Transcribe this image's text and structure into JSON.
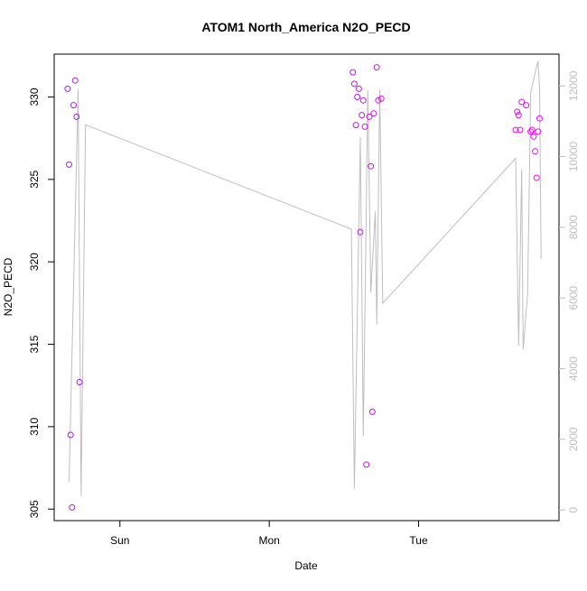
{
  "chart_data": {
    "type": "scatter",
    "title": "ATOM1 North_America N2O_PECD",
    "xlabel": "Date",
    "ylabel": "N2O_PECD",
    "x_ticks": [
      "Sun",
      "Mon",
      "Tue"
    ],
    "x_tick_positions_day": [
      1,
      2,
      3
    ],
    "xlim_day": [
      0.56,
      3.94
    ],
    "ylim": [
      304.3,
      332.6
    ],
    "y_ticks": [
      305,
      310,
      315,
      320,
      325,
      330
    ],
    "y2lim": [
      -300,
      12900
    ],
    "y2_ticks": [
      0,
      2000,
      4000,
      6000,
      8000,
      10000,
      12000
    ],
    "grid": false,
    "colors": {
      "line": "#bebebe",
      "axis": "#000000",
      "right_axis": "#bebebe",
      "points": [
        "#a020f0",
        "#bb15f0",
        "#d10ff0",
        "#e80aee",
        "#ff00ff"
      ]
    },
    "points": [
      {
        "t": 0.65,
        "y": 330.5
      },
      {
        "t": 0.66,
        "y": 325.9
      },
      {
        "t": 0.67,
        "y": 309.5
      },
      {
        "t": 0.68,
        "y": 305.1
      },
      {
        "t": 0.69,
        "y": 329.5
      },
      {
        "t": 0.7,
        "y": 331.0
      },
      {
        "t": 0.71,
        "y": 328.8
      },
      {
        "t": 0.73,
        "y": 312.7
      },
      {
        "t": 2.56,
        "y": 331.5
      },
      {
        "t": 2.57,
        "y": 330.8
      },
      {
        "t": 2.58,
        "y": 328.3
      },
      {
        "t": 2.59,
        "y": 330.0
      },
      {
        "t": 2.6,
        "y": 330.5
      },
      {
        "t": 2.61,
        "y": 321.8
      },
      {
        "t": 2.62,
        "y": 328.9
      },
      {
        "t": 2.63,
        "y": 329.8
      },
      {
        "t": 2.64,
        "y": 328.2
      },
      {
        "t": 2.65,
        "y": 307.7
      },
      {
        "t": 2.67,
        "y": 328.8
      },
      {
        "t": 2.68,
        "y": 325.8
      },
      {
        "t": 2.69,
        "y": 310.9
      },
      {
        "t": 2.7,
        "y": 329.0
      },
      {
        "t": 2.72,
        "y": 331.8
      },
      {
        "t": 2.73,
        "y": 329.8
      },
      {
        "t": 2.75,
        "y": 329.9
      },
      {
        "t": 3.65,
        "y": 328.0
      },
      {
        "t": 3.66,
        "y": 329.1
      },
      {
        "t": 3.67,
        "y": 328.9
      },
      {
        "t": 3.68,
        "y": 328.0
      },
      {
        "t": 3.69,
        "y": 329.7
      },
      {
        "t": 3.72,
        "y": 329.5
      },
      {
        "t": 3.75,
        "y": 327.9
      },
      {
        "t": 3.76,
        "y": 328.0
      },
      {
        "t": 3.77,
        "y": 327.6
      },
      {
        "t": 3.78,
        "y": 326.7
      },
      {
        "t": 3.79,
        "y": 325.1
      },
      {
        "t": 3.8,
        "y": 327.9
      },
      {
        "t": 3.81,
        "y": 328.7
      }
    ],
    "line_series": [
      {
        "t": 0.66,
        "y2": 800
      },
      {
        "t": 0.72,
        "y2": 11900
      },
      {
        "t": 0.74,
        "y2": 400
      },
      {
        "t": 0.77,
        "y2": 10900
      },
      {
        "t": 2.55,
        "y2": 7950
      },
      {
        "t": 2.57,
        "y2": 600
      },
      {
        "t": 2.61,
        "y2": 10550
      },
      {
        "t": 2.63,
        "y2": 2100
      },
      {
        "t": 2.66,
        "y2": 11900
      },
      {
        "t": 2.68,
        "y2": 6150
      },
      {
        "t": 2.71,
        "y2": 8450
      },
      {
        "t": 2.72,
        "y2": 5250
      },
      {
        "t": 2.74,
        "y2": 11900
      },
      {
        "t": 2.76,
        "y2": 5850
      },
      {
        "t": 3.65,
        "y2": 9950
      },
      {
        "t": 3.67,
        "y2": 4650
      },
      {
        "t": 3.69,
        "y2": 9650
      },
      {
        "t": 3.7,
        "y2": 4550
      },
      {
        "t": 3.73,
        "y2": 6150
      },
      {
        "t": 3.75,
        "y2": 11800
      },
      {
        "t": 3.79,
        "y2": 12550
      },
      {
        "t": 3.8,
        "y2": 12700
      },
      {
        "t": 3.81,
        "y2": 11900
      },
      {
        "t": 3.82,
        "y2": 7100
      }
    ]
  }
}
